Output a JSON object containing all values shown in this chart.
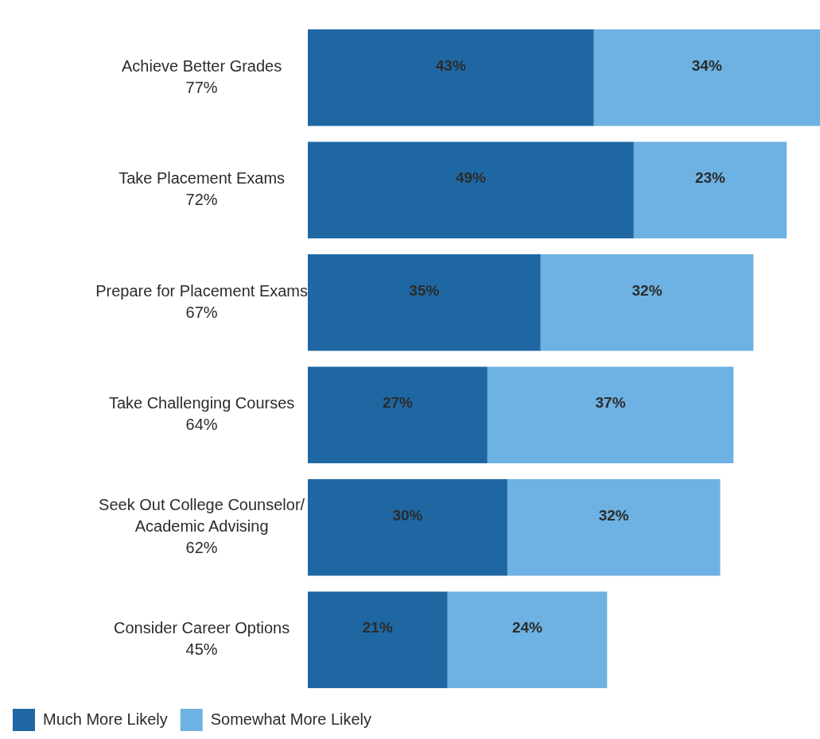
{
  "chart_data": {
    "type": "bar",
    "orientation": "horizontal",
    "stacked": true,
    "categories": [
      "Achieve Better Grades",
      "Take Placement Exams",
      "Prepare for Placement Exams",
      "Take Challenging Courses",
      "Seek Out College Counselor/ Academic Advising",
      "Consider Career Options"
    ],
    "annotations": [
      "77%",
      "72%",
      "67%",
      "64%",
      "62%",
      "45%"
    ],
    "series": [
      {
        "name": "Much More Likely",
        "color": "#1f67a3",
        "values": [
          43,
          49,
          35,
          27,
          30,
          21
        ],
        "value_labels": [
          "43%",
          "49%",
          "35%",
          "27%",
          "30%",
          "21%"
        ]
      },
      {
        "name": "Somewhat More Likely",
        "color": "#6db2e2",
        "values": [
          34,
          23,
          32,
          37,
          32,
          24
        ],
        "value_labels": [
          "34%",
          "23%",
          "32%",
          "37%",
          "32%",
          "24%"
        ]
      }
    ],
    "legend": "bottom left",
    "grid": false
  }
}
